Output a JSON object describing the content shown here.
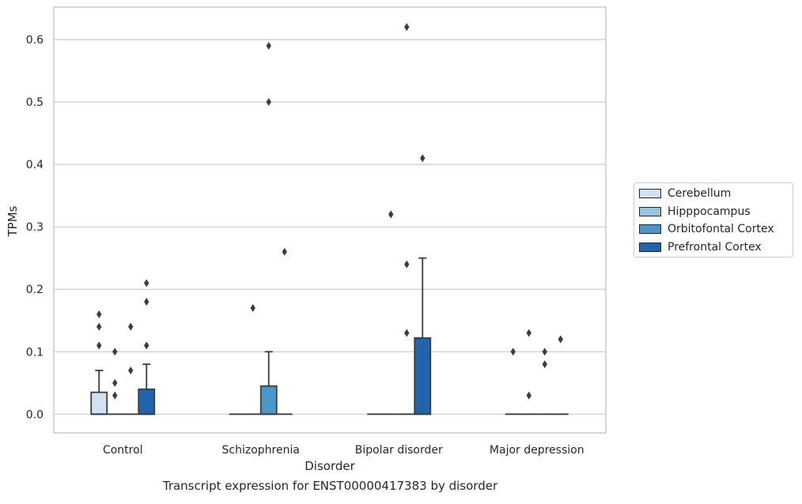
{
  "caption": "Transcript expression for ENST00000417383 by disorder",
  "colors": {
    "Cerebellum": "#d0e1f2",
    "Hipppocampus": "#94c4df",
    "Orbitofontal Cortex": "#4a98c9",
    "Prefrontal Cortex": "#2164ab",
    "grid": "#cccccc",
    "box_edge": "#3c3c3c"
  },
  "chart_data": {
    "type": "box",
    "xlabel": "Disorder",
    "ylabel": "TPMs",
    "categories": [
      "Control",
      "Schizophrenia",
      "Bipolar disorder",
      "Major depression"
    ],
    "ylim": [
      -0.03,
      0.652
    ],
    "yticks": [
      0.0,
      0.1,
      0.2,
      0.3,
      0.4,
      0.5,
      0.6
    ],
    "ytick_labels": [
      "0.0",
      "0.1",
      "0.2",
      "0.3",
      "0.4",
      "0.5",
      "0.6"
    ],
    "grid": "horizontal",
    "legend_position": "right",
    "series": [
      {
        "name": "Cerebellum",
        "boxes": [
          {
            "q1": 0.0,
            "median": 0.0,
            "q3": 0.035,
            "whisker_low": 0.0,
            "whisker_high": 0.07,
            "outliers": [
              0.11,
              0.14,
              0.16
            ]
          },
          {
            "q1": 0.0,
            "median": 0.0,
            "q3": 0.0,
            "whisker_low": 0.0,
            "whisker_high": 0.0,
            "outliers": []
          },
          {
            "q1": 0.0,
            "median": 0.0,
            "q3": 0.0,
            "whisker_low": 0.0,
            "whisker_high": 0.0,
            "outliers": []
          },
          {
            "q1": 0.0,
            "median": 0.0,
            "q3": 0.0,
            "whisker_low": 0.0,
            "whisker_high": 0.0,
            "outliers": [
              0.1
            ]
          }
        ]
      },
      {
        "name": "Hipppocampus",
        "boxes": [
          {
            "q1": 0.0,
            "median": 0.0,
            "q3": 0.0,
            "whisker_low": 0.0,
            "whisker_high": 0.0,
            "outliers": [
              0.03,
              0.05,
              0.1
            ]
          },
          {
            "q1": 0.0,
            "median": 0.0,
            "q3": 0.0,
            "whisker_low": 0.0,
            "whisker_high": 0.0,
            "outliers": [
              0.17
            ]
          },
          {
            "q1": 0.0,
            "median": 0.0,
            "q3": 0.0,
            "whisker_low": 0.0,
            "whisker_high": 0.0,
            "outliers": [
              0.32
            ]
          },
          {
            "q1": 0.0,
            "median": 0.0,
            "q3": 0.0,
            "whisker_low": 0.0,
            "whisker_high": 0.0,
            "outliers": [
              0.03,
              0.13
            ]
          }
        ]
      },
      {
        "name": "Orbitofontal Cortex",
        "boxes": [
          {
            "q1": 0.0,
            "median": 0.0,
            "q3": 0.0,
            "whisker_low": 0.0,
            "whisker_high": 0.0,
            "outliers": [
              0.07,
              0.14
            ]
          },
          {
            "q1": 0.0,
            "median": 0.0,
            "q3": 0.045,
            "whisker_low": 0.0,
            "whisker_high": 0.1,
            "outliers": [
              0.5,
              0.59
            ]
          },
          {
            "q1": 0.0,
            "median": 0.0,
            "q3": 0.0,
            "whisker_low": 0.0,
            "whisker_high": 0.0,
            "outliers": [
              0.13,
              0.24,
              0.62
            ]
          },
          {
            "q1": 0.0,
            "median": 0.0,
            "q3": 0.0,
            "whisker_low": 0.0,
            "whisker_high": 0.0,
            "outliers": [
              0.08,
              0.1
            ]
          }
        ]
      },
      {
        "name": "Prefrontal Cortex",
        "boxes": [
          {
            "q1": 0.0,
            "median": 0.0,
            "q3": 0.04,
            "whisker_low": 0.0,
            "whisker_high": 0.08,
            "outliers": [
              0.11,
              0.18,
              0.21
            ]
          },
          {
            "q1": 0.0,
            "median": 0.0,
            "q3": 0.0,
            "whisker_low": 0.0,
            "whisker_high": 0.0,
            "outliers": [
              0.26
            ]
          },
          {
            "q1": 0.0,
            "median": 0.0,
            "q3": 0.122,
            "whisker_low": 0.0,
            "whisker_high": 0.25,
            "outliers": [
              0.41
            ]
          },
          {
            "q1": 0.0,
            "median": 0.0,
            "q3": 0.0,
            "whisker_low": 0.0,
            "whisker_high": 0.0,
            "outliers": [
              0.12
            ]
          }
        ]
      }
    ]
  }
}
